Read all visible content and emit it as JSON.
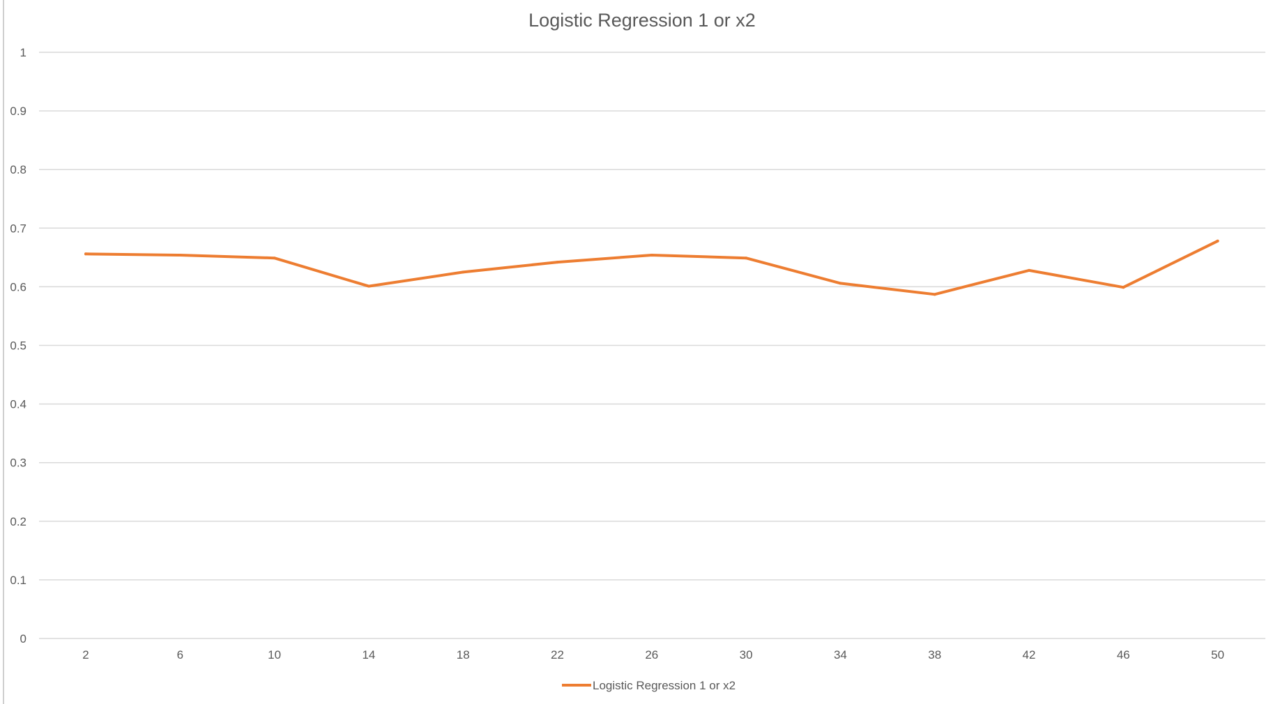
{
  "chart_data": {
    "type": "line",
    "title": "Logistic Regression 1 or x2",
    "xlabel": "",
    "ylabel": "",
    "x": [
      2,
      6,
      10,
      14,
      18,
      22,
      26,
      30,
      34,
      38,
      42,
      46,
      50
    ],
    "ylim": [
      0,
      1
    ],
    "yticks": [
      0,
      0.1,
      0.2,
      0.3,
      0.4,
      0.5,
      0.6,
      0.7,
      0.8,
      0.9,
      1
    ],
    "ytick_labels": [
      "0",
      "0.1",
      "0.2",
      "0.3",
      "0.4",
      "0.5",
      "0.6",
      "0.7",
      "0.8",
      "0.9",
      "1"
    ],
    "grid": "horizontal",
    "legend_position": "bottom-center",
    "series": [
      {
        "name": "Logistic Regression 1 or x2",
        "color": "#ed7d31",
        "values": [
          0.656,
          0.654,
          0.649,
          0.601,
          0.625,
          0.642,
          0.654,
          0.649,
          0.606,
          0.587,
          0.628,
          0.599,
          0.678
        ]
      }
    ]
  }
}
